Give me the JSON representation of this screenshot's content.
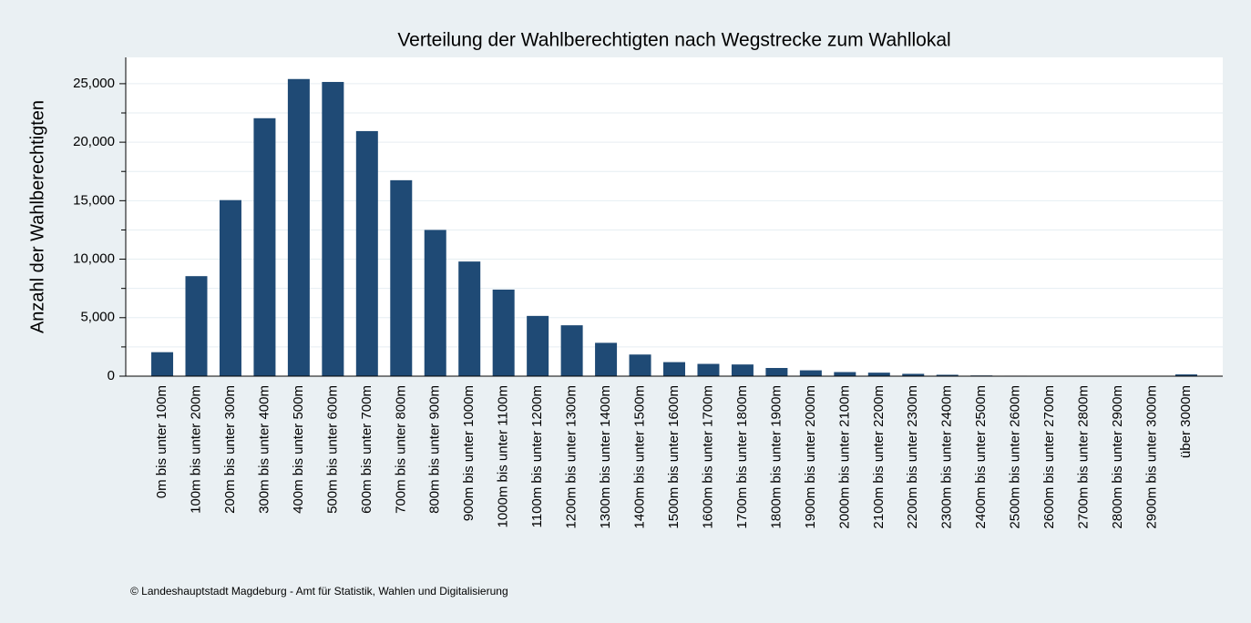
{
  "chart_data": {
    "type": "bar",
    "title": "Verteilung der Wahlberechtigten nach Wegstrecke zum Wahllokal",
    "y_label": "Anzahl der Wahlberechtigten",
    "footnote": "©  Landeshauptstadt Magdeburg - Amt für Statistik, Wahlen und Digitalisierung",
    "categories": [
      "0m bis unter 100m",
      "100m bis unter 200m",
      "200m bis unter 300m",
      "300m bis unter 400m",
      "400m bis unter 500m",
      "500m bis unter 600m",
      "600m bis unter 700m",
      "700m bis unter 800m",
      "800m bis unter 900m",
      "900m bis unter 1000m",
      "1000m bis unter 1100m",
      "1100m bis unter 1200m",
      "1200m bis unter 1300m",
      "1300m bis unter 1400m",
      "1400m bis unter 1500m",
      "1500m bis unter 1600m",
      "1600m bis unter 1700m",
      "1700m bis unter 1800m",
      "1800m bis unter 1900m",
      "1900m bis unter 2000m",
      "2000m bis unter 2100m",
      "2100m bis unter 2200m",
      "2200m bis unter 2300m",
      "2300m bis unter 2400m",
      "2400m bis unter 2500m",
      "2500m bis unter 2600m",
      "2600m bis unter 2700m",
      "2700m bis unter 2800m",
      "2800m bis unter 2900m",
      "2900m bis unter 3000m",
      "über 3000m"
    ],
    "values": [
      2050,
      8550,
      15050,
      22050,
      25400,
      25150,
      20950,
      16750,
      12500,
      9800,
      7400,
      5150,
      4350,
      2850,
      1850,
      1200,
      1050,
      1000,
      700,
      500,
      350,
      300,
      200,
      120,
      60,
      40,
      30,
      20,
      20,
      20,
      150
    ],
    "color": "#1f4a75",
    "ylim": [
      0,
      27250
    ],
    "yticks": [
      0,
      {
        "value": 5000,
        "label": "5,000"
      },
      {
        "value": 10000,
        "label": "10,000"
      },
      {
        "value": 15000,
        "label": "15,000"
      },
      {
        "value": 20000,
        "label": "20,000"
      },
      {
        "value": 25000,
        "label": "25,000"
      }
    ],
    "yminor_ticks": [
      2500,
      7500,
      12500,
      17500,
      22500
    ],
    "grid": true
  }
}
